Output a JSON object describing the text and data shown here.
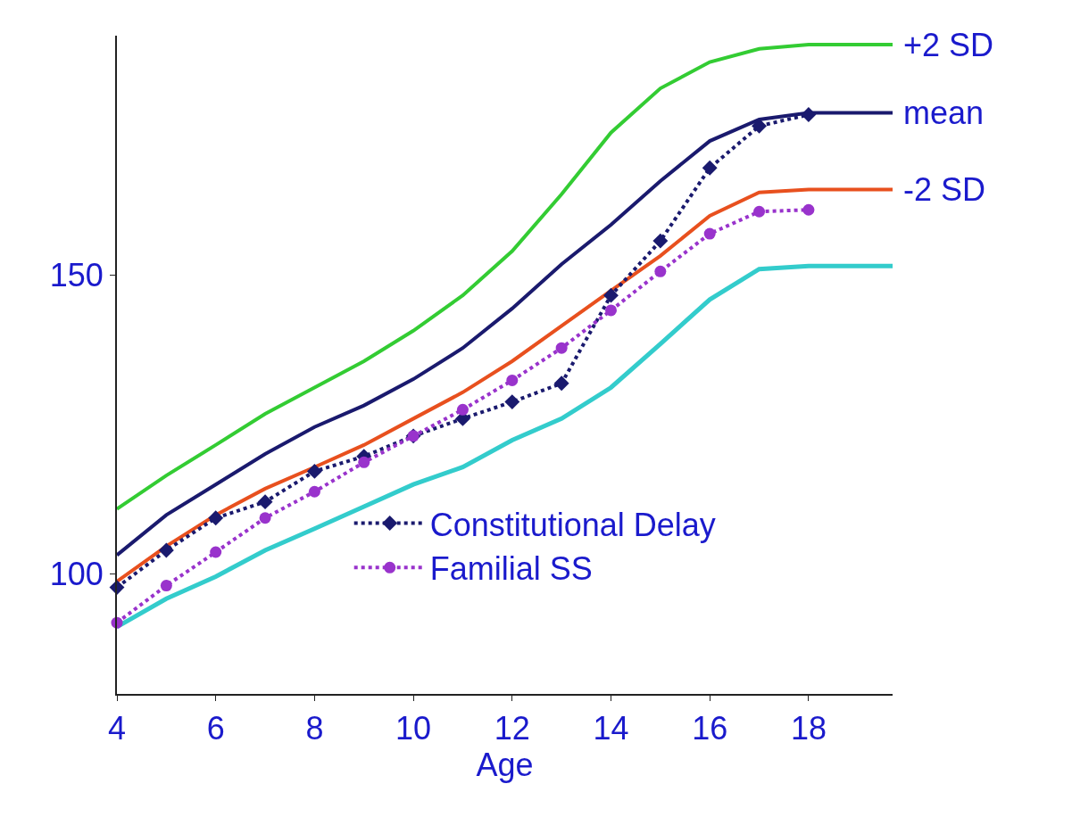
{
  "chart_data": {
    "type": "line",
    "xlabel": "Age",
    "xlim": [
      4,
      19.7
    ],
    "xticks": [
      4,
      6,
      8,
      10,
      12,
      14,
      16,
      18
    ],
    "ylim": [
      80,
      190
    ],
    "yticks": [
      100,
      150
    ],
    "grid": false,
    "legend": "bottom right",
    "marker": "none",
    "line_style": "solid",
    "series": [
      {
        "name": "+2 SD",
        "color": "#33cc33",
        "x": [
          4,
          5,
          6,
          7,
          8,
          9,
          10,
          11,
          12,
          13,
          14,
          15,
          16,
          17,
          18,
          19.7
        ],
        "values": [
          110.9,
          116.5,
          121.6,
          126.8,
          131.2,
          135.6,
          140.7,
          146.6,
          154,
          163.5,
          173.8,
          181.2,
          185.6,
          187.8,
          188.5,
          188.5
        ]
      },
      {
        "name": "mean",
        "color": "#1a1a6e",
        "x": [
          4,
          5,
          6,
          7,
          8,
          9,
          10,
          11,
          12,
          13,
          14,
          15,
          16,
          17,
          18,
          19.7
        ],
        "values": [
          103.2,
          109.9,
          115,
          120.1,
          124.6,
          128.2,
          132.6,
          137.8,
          144.4,
          151.8,
          158.4,
          165.7,
          172.4,
          176,
          177.1,
          177.1
        ]
      },
      {
        "name": "-2 SD",
        "color": "#e8501e",
        "x": [
          4,
          5,
          6,
          7,
          8,
          9,
          10,
          11,
          12,
          13,
          14,
          15,
          16,
          17,
          18,
          19.7
        ],
        "values": [
          98.8,
          104.7,
          109.9,
          114.3,
          117.9,
          121.6,
          126,
          130.4,
          135.6,
          141.5,
          147.4,
          153.2,
          159.9,
          163.8,
          164.3,
          164.3
        ]
      },
      {
        "color": "#33cccc",
        "x": [
          4,
          5,
          6,
          7,
          8,
          9,
          10,
          11,
          12,
          13,
          14,
          15,
          16,
          17,
          18,
          19.7
        ],
        "values": [
          91.2,
          95.9,
          99.6,
          104,
          107.6,
          111.3,
          115,
          117.9,
          122.4,
          126,
          131.2,
          138.5,
          145.9,
          151,
          151.5,
          151.5
        ]
      },
      {
        "name": "Constitutional Delay",
        "color": "#1a1a6e",
        "marker": "diamond",
        "line_style": "dotted",
        "x": [
          4,
          5,
          6,
          7,
          8,
          9,
          10,
          11,
          12,
          13,
          14,
          15,
          16,
          17,
          18
        ],
        "values": [
          97.8,
          104,
          109.4,
          112.1,
          117.2,
          119.7,
          123.1,
          126,
          128.8,
          131.9,
          146.6,
          155.7,
          167.9,
          174.9,
          176.8
        ]
      },
      {
        "name": "Familial SS",
        "color": "#9933cc",
        "marker": "circle",
        "line_style": "dotted",
        "x": [
          4,
          5,
          6,
          7,
          8,
          9,
          10,
          11,
          12,
          13,
          14,
          15,
          16,
          17,
          18
        ],
        "values": [
          91.9,
          98.1,
          103.7,
          109.4,
          113.8,
          118.7,
          123.1,
          127.5,
          132.4,
          137.8,
          144.1,
          150.6,
          156.9,
          160.6,
          160.9
        ]
      }
    ]
  }
}
